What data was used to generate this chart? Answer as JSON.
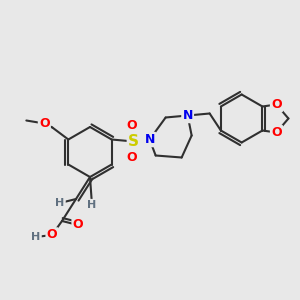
{
  "bg_color": "#e8e8e8",
  "bond_color": "#303030",
  "bond_width": 1.5,
  "atom_colors": {
    "O": "#ff0000",
    "N": "#0000ee",
    "S": "#cccc00",
    "H": "#607080",
    "C": "#303030"
  },
  "font_size_atom": 9,
  "font_size_H": 8,
  "font_size_small": 7.5
}
